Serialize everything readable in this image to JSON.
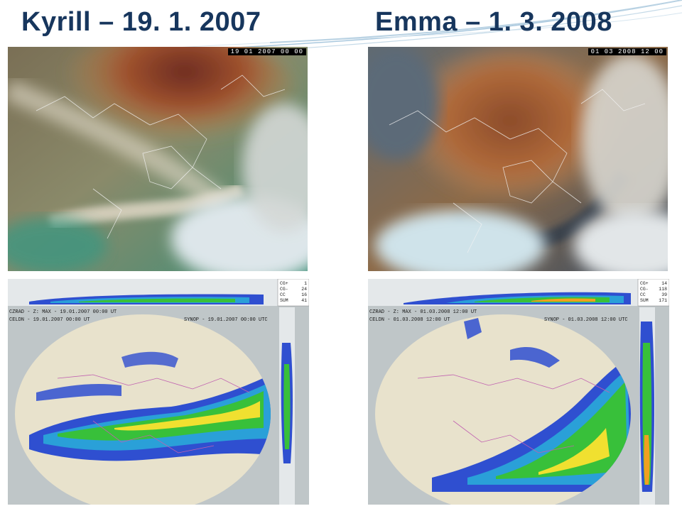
{
  "slide": {
    "left_title": "Kyrill – 19. 1. 2007",
    "right_title": "Emma – 1. 3. 2008"
  },
  "colors": {
    "title": "#17365d",
    "deco_lines": "#a9c8de",
    "radar_background": "#bfc6c8",
    "radar_map": "#e8e2cc"
  },
  "kyrill": {
    "satellite_timestamp": "19 01 2007 00 00",
    "radar": {
      "header_line1": "CZRAD - Z: MAX - 19.01.2007 00:00 UT",
      "header_line2": "CELDN - 19.01.2007 00:00 UT",
      "synop_label": "SYNOP - 19.01.2007 00:00 UTC",
      "lightning": [
        {
          "label": "CG+",
          "value": "1"
        },
        {
          "label": "CG-",
          "value": "24"
        },
        {
          "label": "CC",
          "value": "16"
        },
        {
          "label": "SUM",
          "value": "41"
        }
      ]
    }
  },
  "emma": {
    "satellite_timestamp": "01 03 2008 12 00",
    "radar": {
      "header_line1": "CZRAD - Z: MAX - 01.03.2008 12:00 UT",
      "header_line2": "CELDN - 01.03.2008 12:00 UT",
      "synop_label": "SYNOP - 01.03.2008 12:00 UTC",
      "lightning": [
        {
          "label": "CG+",
          "value": "14"
        },
        {
          "label": "CG-",
          "value": "118"
        },
        {
          "label": "CC",
          "value": "39"
        },
        {
          "label": "SUM",
          "value": "171"
        }
      ]
    }
  }
}
